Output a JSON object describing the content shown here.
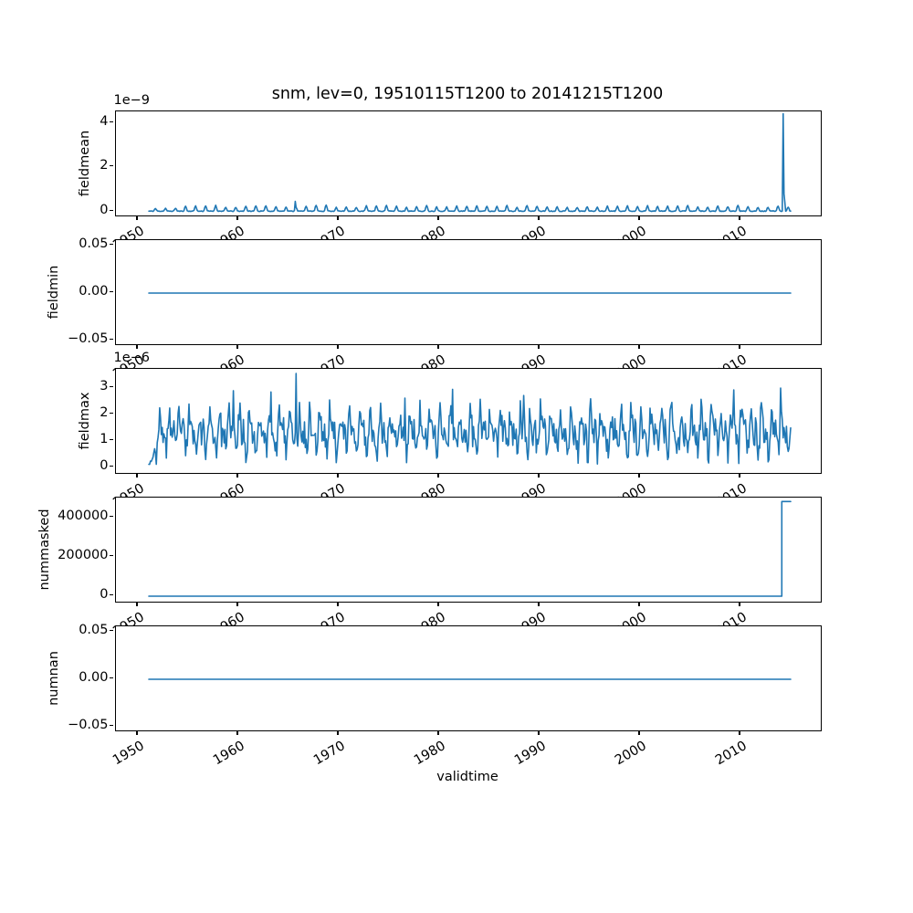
{
  "figure": {
    "title": "snm, lev=0, 19510115T1200 to 20141215T1200",
    "xlabel": "validtime",
    "line_color": "#1f77b4",
    "spine_color": "#000000",
    "text_color": "#000000",
    "background_color": "#ffffff",
    "xlim": [
      1947.77,
      2018.14
    ],
    "xtick_values": [
      1950,
      1960,
      1970,
      1980,
      1990,
      2000,
      2010
    ],
    "xtick_labels": [
      "1950",
      "1960",
      "1970",
      "1980",
      "1990",
      "2000",
      "2010"
    ],
    "xtick_rotation_deg": 30,
    "grid": false,
    "legend": "none"
  },
  "chart_data": [
    {
      "type": "line",
      "name": "fieldmean",
      "ylabel": "fieldmean",
      "offset_text": "1e−9",
      "unit_scale": "1e-9",
      "ylim": [
        -0.247,
        4.527
      ],
      "yticks": [
        {
          "value": 0,
          "label": "0"
        },
        {
          "value": 2,
          "label": "2"
        },
        {
          "value": 4,
          "label": "4"
        }
      ],
      "x_start": 1951.0417,
      "x_end": 2014.9583,
      "samples_per_year": 12,
      "series": {
        "kind": "seasonal-annual",
        "description": "Monthly field mean, annual bumps between ~0.02e-9 and ~0.3e-9, small 0.47e-9 bump near 1965, huge spike 4.42e-9 in early 2014",
        "base": 0.03,
        "amp": 0.21,
        "noise": 0.03,
        "seed": 11,
        "anomalies": [
          {
            "x": 1965.63,
            "value": 0.47
          },
          {
            "x": 2014.204,
            "value": 4.42
          },
          {
            "x": 2014.288,
            "value": 0.82
          },
          {
            "x": 2014.371,
            "value": 0.45
          }
        ]
      }
    },
    {
      "type": "line",
      "name": "fieldmin",
      "ylabel": "fieldmin",
      "offset_text": "",
      "unit_scale": "1",
      "ylim": [
        -0.0558,
        0.0558
      ],
      "yticks": [
        {
          "value": -0.05,
          "label": "−0.05"
        },
        {
          "value": 0,
          "label": "0.00"
        },
        {
          "value": 0.05,
          "label": "0.05"
        }
      ],
      "x_start": 1951.0417,
      "x_end": 2014.9583,
      "samples_per_year": 12,
      "series": {
        "kind": "constant",
        "description": "Field minimum is exactly 0 for the whole period",
        "value": 0
      }
    },
    {
      "type": "line",
      "name": "fieldmax",
      "ylabel": "fieldmax",
      "offset_text": "1e−6",
      "unit_scale": "1e-6",
      "ylim": [
        -0.276,
        3.724
      ],
      "yticks": [
        {
          "value": 0,
          "label": "0"
        },
        {
          "value": 1,
          "label": "1"
        },
        {
          "value": 2,
          "label": "2"
        },
        {
          "value": 3,
          "label": "3"
        }
      ],
      "x_start": 1951.0417,
      "x_end": 2014.9583,
      "samples_per_year": 12,
      "series": {
        "kind": "seasonal-semiannual",
        "description": "Noisy monthly field max oscillating ~0.2e-6 to 2.5e-6, ramping up from ~0.07e-6 in 1951, tallest spike ~3.55e-6 near 1966",
        "base": 1.33,
        "amp1": 0.5,
        "amp2": 0.38,
        "noise": 0.5,
        "floor": 0.12,
        "seed": 23,
        "anomalies": [
          {
            "x": 1959.45,
            "value": 2.9
          },
          {
            "x": 1963.2,
            "value": 2.85
          },
          {
            "x": 1965.7,
            "value": 3.55
          },
          {
            "x": 1976.55,
            "value": 2.62
          },
          {
            "x": 1981.3,
            "value": 2.95
          },
          {
            "x": 1988.4,
            "value": 2.72
          },
          {
            "x": 2009.3,
            "value": 2.93
          },
          {
            "x": 2013.95,
            "value": 3.0
          }
        ]
      }
    },
    {
      "type": "line",
      "name": "nummasked",
      "ylabel": "nummasked",
      "offset_text": "",
      "unit_scale": "1",
      "ylim": [
        -37000,
        500000
      ],
      "yticks": [
        {
          "value": 0,
          "label": "0"
        },
        {
          "value": 200000,
          "label": "200000"
        },
        {
          "value": 400000,
          "label": "400000"
        }
      ],
      "x_start": 1951.0417,
      "x_end": 2014.9583,
      "samples_per_year": 12,
      "series": {
        "kind": "step",
        "description": "Number of masked points: 0 until early 2014, then jumps to ~480000",
        "low": 0,
        "high": 480000,
        "step_x": 2014.08
      }
    },
    {
      "type": "line",
      "name": "numnan",
      "ylabel": "numnan",
      "offset_text": "",
      "unit_scale": "1",
      "ylim": [
        -0.0558,
        0.0558
      ],
      "yticks": [
        {
          "value": -0.05,
          "label": "−0.05"
        },
        {
          "value": 0,
          "label": "0.00"
        },
        {
          "value": 0.05,
          "label": "0.05"
        }
      ],
      "x_start": 1951.0417,
      "x_end": 2014.9583,
      "samples_per_year": 12,
      "series": {
        "kind": "constant",
        "description": "Number of NaN points is exactly 0 for the whole period",
        "value": 0
      }
    }
  ]
}
